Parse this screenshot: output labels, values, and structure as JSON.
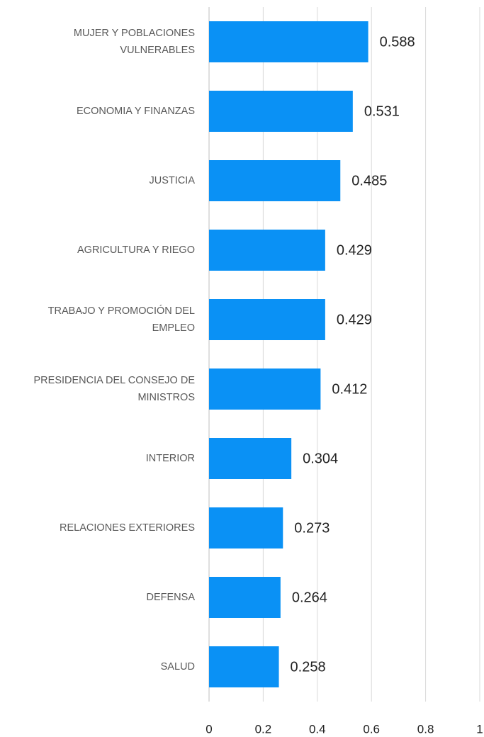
{
  "chart_data": {
    "type": "bar",
    "orientation": "horizontal",
    "categories": [
      "MUJER Y POBLACIONES VULNERABLES",
      "ECONOMIA Y FINANZAS",
      "JUSTICIA",
      "AGRICULTURA Y RIEGO",
      "TRABAJO Y PROMOCIÓN DEL EMPLEO",
      "PRESIDENCIA DEL CONSEJO DE MINISTROS",
      "INTERIOR",
      "RELACIONES EXTERIORES",
      "DEFENSA",
      "SALUD"
    ],
    "values": [
      0.588,
      0.531,
      0.485,
      0.429,
      0.429,
      0.412,
      0.304,
      0.273,
      0.264,
      0.258
    ],
    "color": "#0a91f5",
    "xlim": [
      0,
      1
    ],
    "xticks": [
      0,
      0.2,
      0.4,
      0.6,
      0.8,
      1
    ],
    "grid": true
  }
}
